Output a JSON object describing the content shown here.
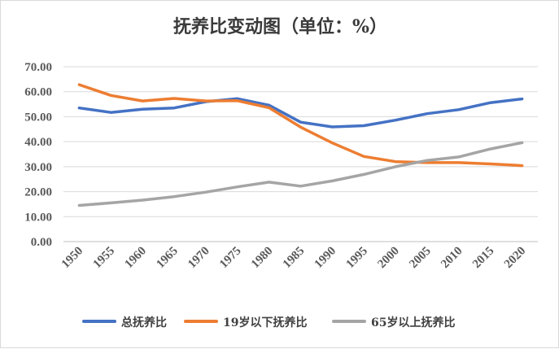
{
  "chart_data": {
    "type": "line",
    "title": "抚养比变动图（单位：%）",
    "xlabel": "",
    "ylabel": "",
    "categories": [
      "1950",
      "1955",
      "1960",
      "1965",
      "1970",
      "1975",
      "1980",
      "1985",
      "1990",
      "1995",
      "2000",
      "2005",
      "2010",
      "2015",
      "2020"
    ],
    "ylim": [
      0,
      70
    ],
    "yticks": [
      "0.00",
      "10.00",
      "20.00",
      "30.00",
      "40.00",
      "50.00",
      "60.00",
      "70.00"
    ],
    "grid": true,
    "legend_position": "bottom",
    "series": [
      {
        "name": "总抚养比",
        "color": "#4472C4",
        "values": [
          53.5,
          51.7,
          53.0,
          53.5,
          56.0,
          57.2,
          54.6,
          47.8,
          45.9,
          46.4,
          48.6,
          51.2,
          52.8,
          55.6,
          57.1
        ]
      },
      {
        "name": "19岁以下抚养比",
        "color": "#ED7D31",
        "values": [
          62.8,
          58.5,
          56.3,
          57.3,
          56.3,
          56.4,
          53.6,
          45.8,
          39.5,
          34.1,
          32.0,
          31.6,
          31.6,
          31.1,
          30.4
        ]
      },
      {
        "name": "65岁以上抚养比",
        "color": "#A5A5A5",
        "values": [
          14.5,
          15.5,
          16.6,
          18.0,
          19.8,
          21.9,
          23.8,
          22.2,
          24.3,
          26.9,
          30.0,
          32.5,
          33.9,
          37.1,
          39.6
        ]
      }
    ]
  }
}
